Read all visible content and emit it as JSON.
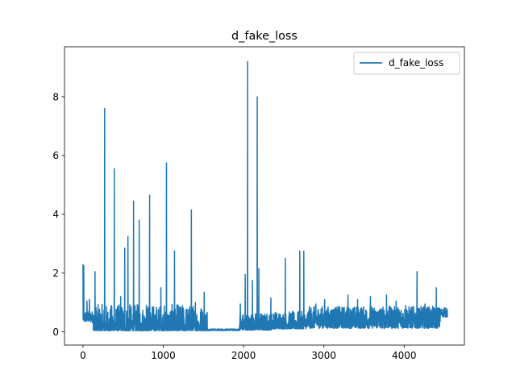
{
  "chart_data": {
    "type": "line",
    "title": "d_fake_loss",
    "xlabel": "",
    "ylabel": "",
    "xlim": [
      -230,
      4750
    ],
    "ylim": [
      -0.45,
      9.7
    ],
    "xticks": [
      0,
      1000,
      2000,
      3000,
      4000
    ],
    "yticks": [
      0,
      2,
      4,
      6,
      8
    ],
    "grid": false,
    "legend": "top-right",
    "series": [
      {
        "name": "d_fake_loss",
        "color": "#1f77b4",
        "n_points": 4540,
        "spikes": [
          [
            0,
            2.3
          ],
          [
            10,
            2.25
          ],
          [
            50,
            1.05
          ],
          [
            80,
            1.1
          ],
          [
            150,
            2.05
          ],
          [
            270,
            7.6
          ],
          [
            390,
            5.55
          ],
          [
            470,
            1.2
          ],
          [
            520,
            2.85
          ],
          [
            560,
            3.25
          ],
          [
            630,
            4.45
          ],
          [
            700,
            3.8
          ],
          [
            790,
            0.9
          ],
          [
            830,
            4.65
          ],
          [
            970,
            1.5
          ],
          [
            1040,
            5.75
          ],
          [
            1140,
            2.75
          ],
          [
            1250,
            0.8
          ],
          [
            1350,
            4.15
          ],
          [
            1400,
            1.0
          ],
          [
            1510,
            1.35
          ],
          [
            1960,
            0.95
          ],
          [
            2020,
            1.95
          ],
          [
            2050,
            9.2
          ],
          [
            2110,
            1.75
          ],
          [
            2170,
            8.0
          ],
          [
            2190,
            2.15
          ],
          [
            2340,
            1.15
          ],
          [
            2520,
            2.5
          ],
          [
            2700,
            2.75
          ],
          [
            2750,
            2.75
          ],
          [
            2900,
            0.95
          ],
          [
            3010,
            1.1
          ],
          [
            3300,
            1.25
          ],
          [
            3420,
            1.1
          ],
          [
            3580,
            1.2
          ],
          [
            3780,
            1.25
          ],
          [
            3900,
            1.05
          ],
          [
            4020,
            0.9
          ],
          [
            4160,
            2.05
          ],
          [
            4260,
            0.95
          ],
          [
            4400,
            1.5
          ]
        ]
      }
    ]
  }
}
